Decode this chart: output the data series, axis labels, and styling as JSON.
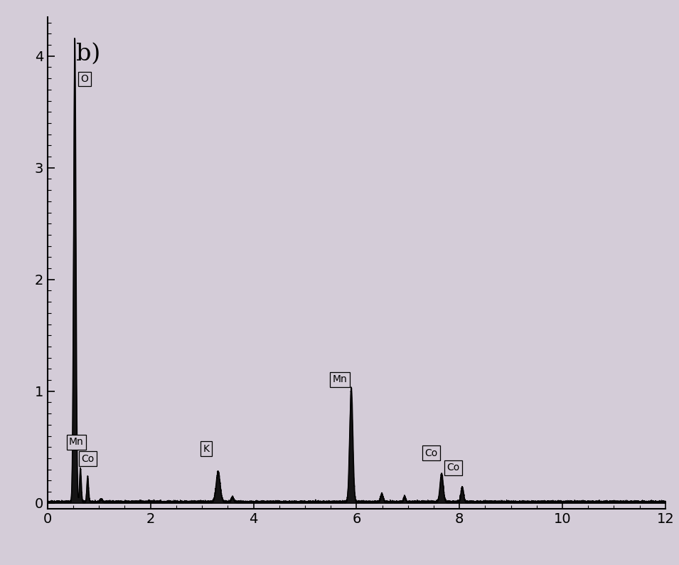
{
  "title": "b)",
  "xlim": [
    0,
    12
  ],
  "ylim": [
    -0.05,
    4.35
  ],
  "yticks": [
    0,
    1,
    2,
    3,
    4
  ],
  "xticks": [
    0,
    2,
    4,
    6,
    8,
    10,
    12
  ],
  "background_color": "#d4ccd8",
  "plot_bg_color": "#d4ccd8",
  "line_color": "#000000",
  "title_fontsize": 24,
  "tick_fontsize": 14,
  "noise_level": 0.015
}
